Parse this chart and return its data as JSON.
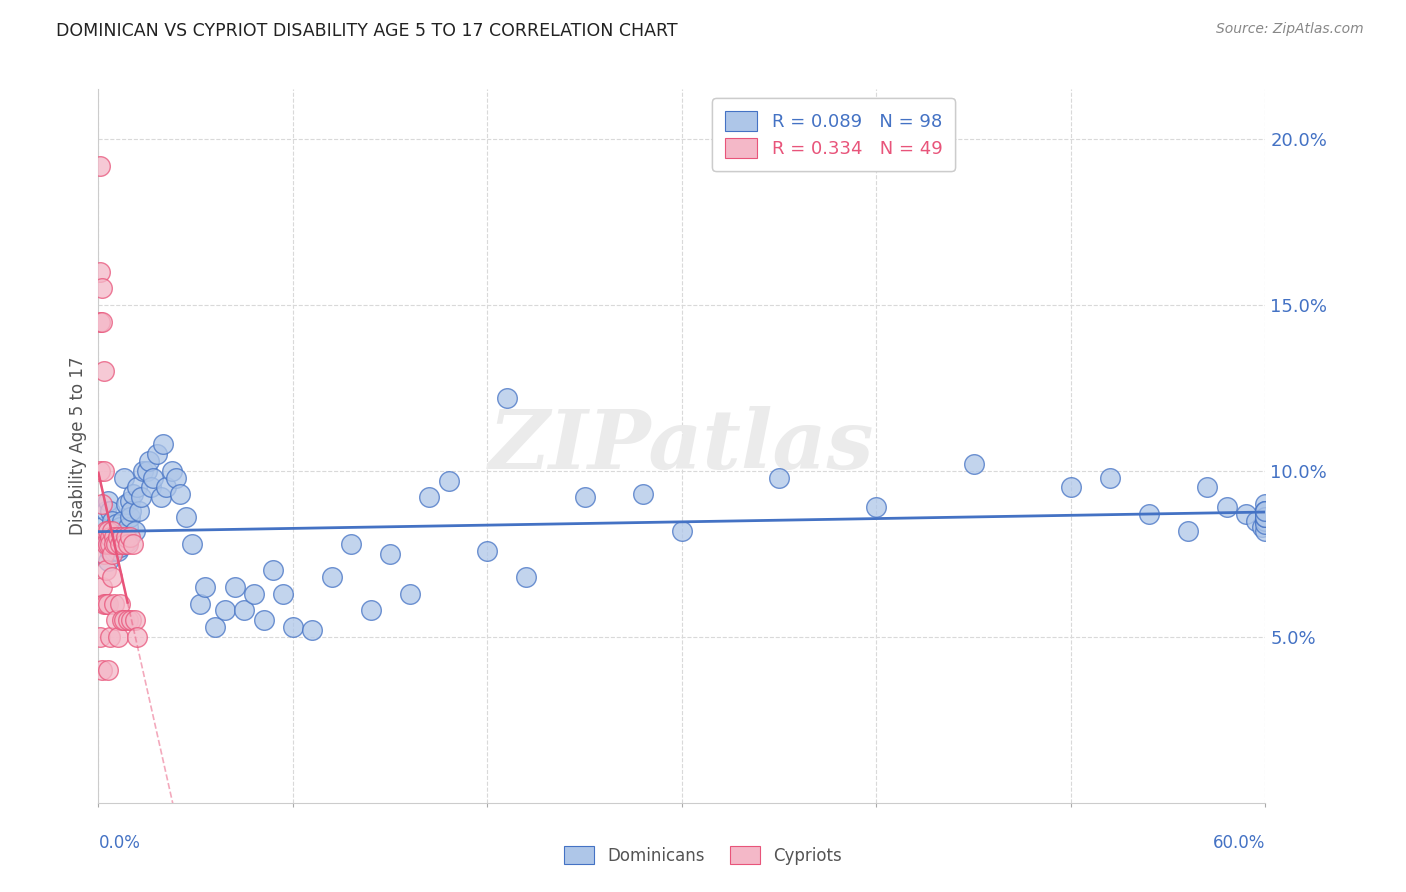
{
  "title": "DOMINICAN VS CYPRIOT DISABILITY AGE 5 TO 17 CORRELATION CHART",
  "source": "Source: ZipAtlas.com",
  "ylabel": "Disability Age 5 to 17",
  "xlim": [
    0.0,
    0.6
  ],
  "ylim": [
    0.0,
    0.215
  ],
  "yticks": [
    0.05,
    0.1,
    0.15,
    0.2
  ],
  "ytick_labels": [
    "5.0%",
    "10.0%",
    "15.0%",
    "20.0%"
  ],
  "xtick_labels": [
    "0.0%",
    "60.0%"
  ],
  "legend_r_entries": [
    {
      "r_text": "R = 0.089",
      "n_text": "N = 98",
      "color": "#5b9bd5"
    },
    {
      "r_text": "R = 0.334",
      "n_text": "N = 49",
      "color": "#e8547a"
    }
  ],
  "dominican_x": [
    0.002,
    0.003,
    0.004,
    0.004,
    0.005,
    0.005,
    0.005,
    0.006,
    0.006,
    0.007,
    0.007,
    0.007,
    0.008,
    0.008,
    0.008,
    0.009,
    0.009,
    0.01,
    0.01,
    0.01,
    0.011,
    0.011,
    0.012,
    0.012,
    0.013,
    0.013,
    0.014,
    0.015,
    0.015,
    0.016,
    0.016,
    0.017,
    0.018,
    0.019,
    0.02,
    0.021,
    0.022,
    0.023,
    0.025,
    0.026,
    0.027,
    0.028,
    0.03,
    0.032,
    0.033,
    0.035,
    0.038,
    0.04,
    0.042,
    0.045,
    0.048,
    0.052,
    0.055,
    0.06,
    0.065,
    0.07,
    0.075,
    0.08,
    0.085,
    0.09,
    0.095,
    0.1,
    0.11,
    0.12,
    0.13,
    0.14,
    0.15,
    0.16,
    0.17,
    0.18,
    0.2,
    0.21,
    0.22,
    0.25,
    0.28,
    0.3,
    0.35,
    0.4,
    0.45,
    0.5,
    0.52,
    0.54,
    0.56,
    0.57,
    0.58,
    0.59,
    0.595,
    0.598,
    0.6,
    0.6,
    0.6,
    0.6,
    0.6,
    0.6,
    0.6,
    0.6,
    0.6,
    0.6
  ],
  "dominican_y": [
    0.083,
    0.079,
    0.088,
    0.08,
    0.077,
    0.091,
    0.073,
    0.088,
    0.076,
    0.079,
    0.08,
    0.085,
    0.077,
    0.082,
    0.076,
    0.08,
    0.084,
    0.079,
    0.082,
    0.076,
    0.083,
    0.077,
    0.085,
    0.081,
    0.098,
    0.078,
    0.09,
    0.083,
    0.079,
    0.091,
    0.086,
    0.088,
    0.093,
    0.082,
    0.095,
    0.088,
    0.092,
    0.1,
    0.1,
    0.103,
    0.095,
    0.098,
    0.105,
    0.092,
    0.108,
    0.095,
    0.1,
    0.098,
    0.093,
    0.086,
    0.078,
    0.06,
    0.065,
    0.053,
    0.058,
    0.065,
    0.058,
    0.063,
    0.055,
    0.07,
    0.063,
    0.053,
    0.052,
    0.068,
    0.078,
    0.058,
    0.075,
    0.063,
    0.092,
    0.097,
    0.076,
    0.122,
    0.068,
    0.092,
    0.093,
    0.082,
    0.098,
    0.089,
    0.102,
    0.095,
    0.098,
    0.087,
    0.082,
    0.095,
    0.089,
    0.087,
    0.085,
    0.083,
    0.082,
    0.085,
    0.088,
    0.084,
    0.086,
    0.088,
    0.09,
    0.088,
    0.086,
    0.088
  ],
  "cypriot_x": [
    0.001,
    0.001,
    0.001,
    0.001,
    0.001,
    0.002,
    0.002,
    0.002,
    0.002,
    0.002,
    0.003,
    0.003,
    0.003,
    0.003,
    0.004,
    0.004,
    0.004,
    0.004,
    0.005,
    0.005,
    0.005,
    0.005,
    0.006,
    0.006,
    0.006,
    0.007,
    0.007,
    0.007,
    0.008,
    0.008,
    0.008,
    0.009,
    0.009,
    0.01,
    0.01,
    0.011,
    0.011,
    0.012,
    0.012,
    0.013,
    0.013,
    0.014,
    0.015,
    0.015,
    0.016,
    0.017,
    0.018,
    0.019,
    0.02
  ],
  "cypriot_y": [
    0.192,
    0.16,
    0.145,
    0.1,
    0.05,
    0.155,
    0.145,
    0.09,
    0.065,
    0.04,
    0.13,
    0.1,
    0.075,
    0.06,
    0.082,
    0.078,
    0.07,
    0.06,
    0.082,
    0.078,
    0.06,
    0.04,
    0.08,
    0.078,
    0.05,
    0.082,
    0.075,
    0.068,
    0.08,
    0.078,
    0.06,
    0.078,
    0.055,
    0.08,
    0.05,
    0.078,
    0.06,
    0.08,
    0.055,
    0.078,
    0.055,
    0.08,
    0.078,
    0.055,
    0.08,
    0.055,
    0.078,
    0.055,
    0.05
  ],
  "dominican_color": "#aec6e8",
  "cypriot_color": "#f4b8c8",
  "dominican_line_color": "#4472c4",
  "cypriot_line_color": "#e8547a",
  "background_color": "#ffffff",
  "grid_color": "#d9d9d9",
  "watermark": "ZIPatlas"
}
